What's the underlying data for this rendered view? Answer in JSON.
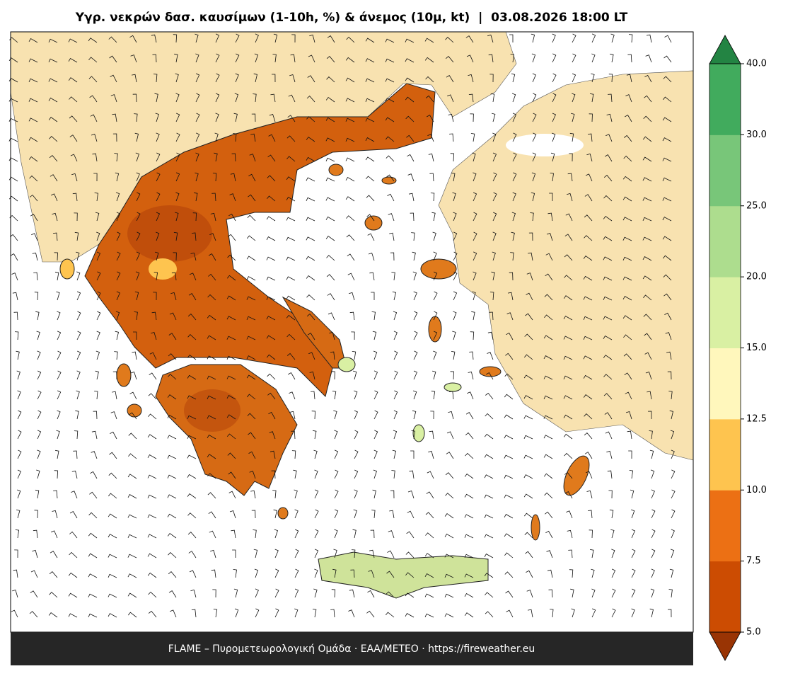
{
  "title": "Υγρ. νεκρών δασ. καυσίμων (1-10h, %) & άνεμος (10μ, kt)  |  03.08.2026 18:00 LT",
  "footer": "FLAME – Πυρομετεωρολογική Ομάδα · ΕΑΑ/METEO · https://fireweather.eu",
  "colorbar": {
    "ticks": [
      {
        "value": 5,
        "label": "5.0"
      },
      7.5,
      {
        "value": 10,
        "label": "10.0"
      },
      12.5,
      {
        "value": 15,
        "label": "15.0"
      },
      {
        "value": 20,
        "label": "20.0"
      },
      {
        "value": 25,
        "label": "25.0"
      },
      {
        "value": 30,
        "label": "30.0"
      },
      {
        "value": 40,
        "label": "40.0"
      }
    ],
    "colors": [
      "#cc4c02",
      "#ec7014",
      "#fec44f",
      "#fff7bc",
      "#d9f0a3",
      "#addd8e",
      "#78c679",
      "#41ab5d"
    ],
    "under_color": "#993404",
    "over_color": "#238443"
  }
}
